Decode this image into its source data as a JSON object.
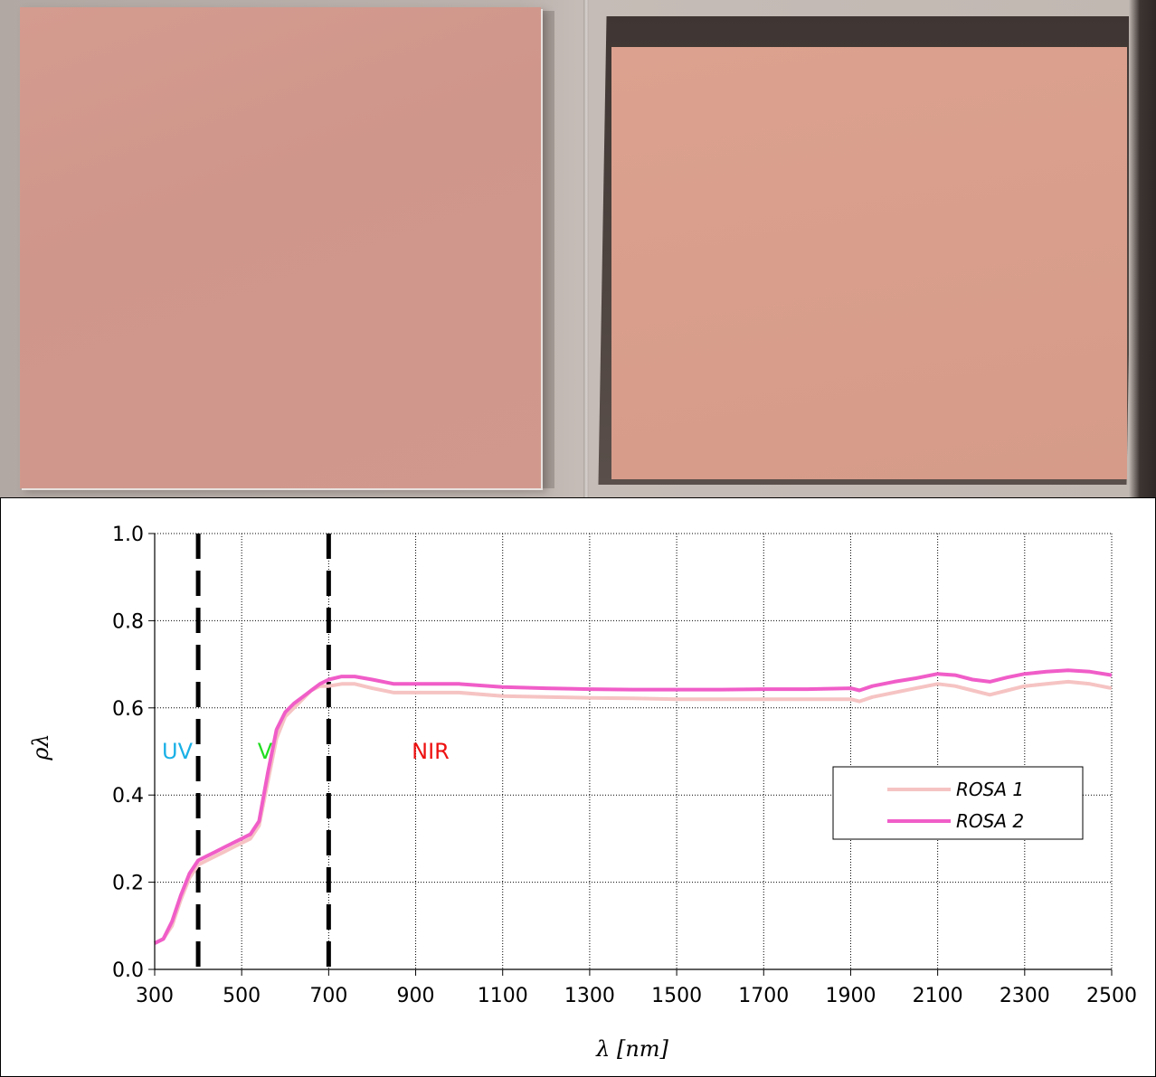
{
  "photos": {
    "left_sample_color": "#d1988c",
    "right_sample_color": "#d99e8c"
  },
  "chart_data": {
    "type": "line",
    "xlabel": "λ  [nm]",
    "ylabel": "ρλ",
    "xlim": [
      300,
      2500
    ],
    "ylim": [
      0.0,
      1.0
    ],
    "x_ticks": [
      "300",
      "500",
      "700",
      "900",
      "1100",
      "1300",
      "1500",
      "1700",
      "1900",
      "2100",
      "2300",
      "2500"
    ],
    "y_ticks": [
      "0.0",
      "0.2",
      "0.4",
      "0.6",
      "0.8",
      "1.0"
    ],
    "grid": true,
    "legend_position": "right-middle",
    "regions": [
      {
        "label": "UV",
        "color": "#1ab0e6"
      },
      {
        "label": "V",
        "color": "#22dd22"
      },
      {
        "label": "NIR",
        "color": "#ee1111"
      }
    ],
    "boundaries_nm": [
      400,
      700
    ],
    "series": [
      {
        "name": "ROSA 1",
        "color": "#f6c3c3",
        "x": [
          300,
          320,
          340,
          360,
          380,
          400,
          420,
          440,
          460,
          480,
          500,
          520,
          540,
          560,
          580,
          600,
          620,
          640,
          660,
          680,
          700,
          730,
          760,
          800,
          850,
          900,
          1000,
          1100,
          1200,
          1300,
          1400,
          1500,
          1600,
          1700,
          1800,
          1900,
          1920,
          1950,
          2000,
          2050,
          2100,
          2140,
          2180,
          2220,
          2260,
          2300,
          2350,
          2400,
          2450,
          2500
        ],
        "y": [
          0.06,
          0.07,
          0.1,
          0.16,
          0.21,
          0.24,
          0.25,
          0.26,
          0.27,
          0.28,
          0.29,
          0.3,
          0.33,
          0.43,
          0.53,
          0.58,
          0.6,
          0.62,
          0.64,
          0.65,
          0.65,
          0.655,
          0.655,
          0.645,
          0.635,
          0.635,
          0.635,
          0.627,
          0.625,
          0.623,
          0.622,
          0.62,
          0.62,
          0.62,
          0.62,
          0.62,
          0.615,
          0.625,
          0.635,
          0.645,
          0.655,
          0.65,
          0.64,
          0.63,
          0.64,
          0.65,
          0.655,
          0.66,
          0.655,
          0.645
        ]
      },
      {
        "name": "ROSA 2",
        "color": "#f05dc8",
        "x": [
          300,
          320,
          340,
          360,
          380,
          400,
          420,
          440,
          460,
          480,
          500,
          520,
          540,
          560,
          580,
          600,
          620,
          640,
          660,
          680,
          700,
          730,
          760,
          800,
          850,
          900,
          1000,
          1100,
          1200,
          1300,
          1400,
          1500,
          1600,
          1700,
          1800,
          1900,
          1920,
          1950,
          2000,
          2050,
          2100,
          2140,
          2180,
          2220,
          2260,
          2300,
          2350,
          2400,
          2450,
          2500
        ],
        "y": [
          0.06,
          0.07,
          0.11,
          0.17,
          0.22,
          0.25,
          0.26,
          0.27,
          0.28,
          0.29,
          0.3,
          0.31,
          0.34,
          0.45,
          0.55,
          0.59,
          0.61,
          0.625,
          0.64,
          0.655,
          0.665,
          0.672,
          0.672,
          0.665,
          0.655,
          0.655,
          0.655,
          0.648,
          0.645,
          0.643,
          0.642,
          0.642,
          0.642,
          0.643,
          0.643,
          0.645,
          0.64,
          0.65,
          0.66,
          0.668,
          0.678,
          0.675,
          0.665,
          0.66,
          0.67,
          0.678,
          0.683,
          0.686,
          0.683,
          0.675
        ]
      }
    ]
  }
}
